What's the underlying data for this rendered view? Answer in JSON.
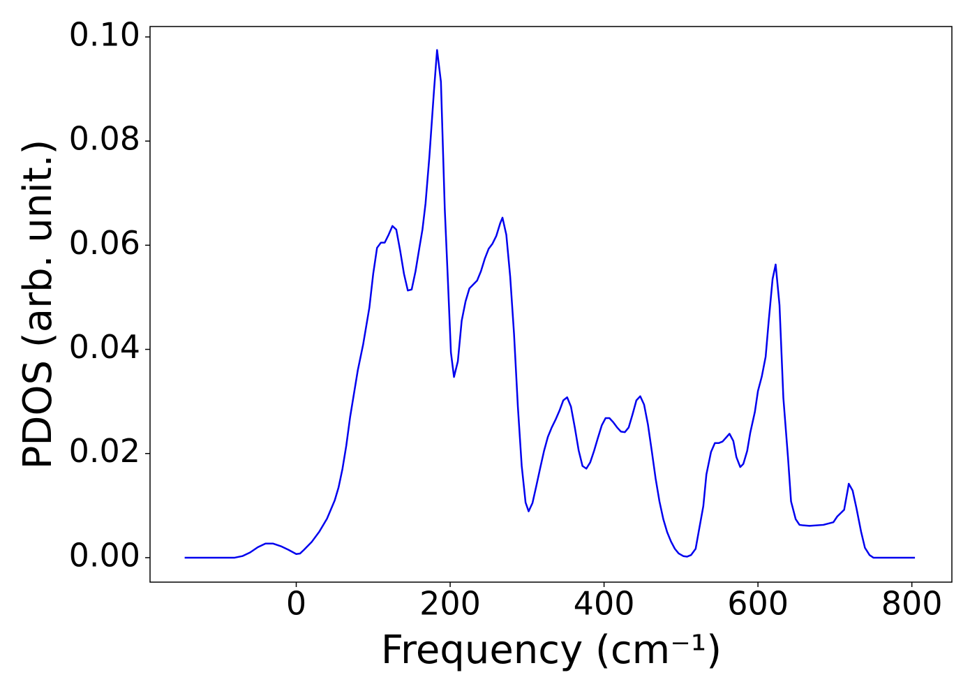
{
  "chart_data": {
    "type": "line",
    "xlabel": "Frequency (cm⁻¹)",
    "ylabel": "PDOS (arb. unit.)",
    "xlim": [
      -190,
      852
    ],
    "ylim": [
      -0.0047,
      0.102
    ],
    "xticks": [
      0,
      200,
      400,
      600,
      800
    ],
    "yticks": [
      {
        "value": 0,
        "label": "0.00"
      },
      {
        "value": 0.02,
        "label": "0.02"
      },
      {
        "value": 0.04,
        "label": "0.04"
      },
      {
        "value": 0.06,
        "label": "0.06"
      },
      {
        "value": 0.08,
        "label": "0.08"
      },
      {
        "value": 0.1,
        "label": "0.10"
      }
    ],
    "grid": false,
    "x": [
      -145,
      -80,
      -70,
      -60,
      -50,
      -40,
      -30,
      -20,
      -10,
      0,
      5,
      10,
      20,
      30,
      40,
      50,
      55,
      60,
      65,
      70,
      75,
      80,
      87,
      95,
      100,
      105,
      110,
      115,
      120,
      125,
      130,
      135,
      140,
      145,
      150,
      155,
      160,
      164,
      168,
      173,
      179,
      183,
      188,
      193,
      197,
      201,
      205,
      210,
      215,
      220,
      225,
      235,
      240,
      245,
      250,
      255,
      260,
      265,
      268,
      273,
      278,
      283,
      288,
      293,
      298,
      302,
      307,
      312,
      317,
      322,
      327,
      332,
      337,
      342,
      347,
      352,
      357,
      362,
      367,
      372,
      377,
      382,
      387,
      392,
      397,
      402,
      407,
      412,
      417,
      422,
      427,
      432,
      437,
      442,
      447,
      452,
      457,
      462,
      467,
      472,
      477,
      482,
      487,
      492,
      497,
      503,
      508,
      513,
      519,
      523,
      529,
      533,
      539,
      544,
      549,
      554,
      560,
      563,
      568,
      572,
      577,
      581,
      586,
      590,
      596,
      600,
      605,
      610,
      614,
      619,
      623,
      628,
      633,
      639,
      643,
      649,
      654,
      659,
      667,
      685,
      698,
      703,
      712,
      717,
      718,
      723,
      728,
      734,
      739,
      745,
      750,
      804
    ],
    "series": [
      {
        "color": "#0000ee",
        "values": [
          0,
          0,
          0.0003,
          0.001,
          0.002,
          0.0027,
          0.0027,
          0.0022,
          0.0015,
          0.0007,
          0.0008,
          0.0015,
          0.003,
          0.005,
          0.0075,
          0.011,
          0.0135,
          0.017,
          0.0215,
          0.027,
          0.0315,
          0.036,
          0.041,
          0.048,
          0.0545,
          0.0595,
          0.0605,
          0.0605,
          0.062,
          0.0637,
          0.063,
          0.059,
          0.0545,
          0.0513,
          0.0515,
          0.055,
          0.0595,
          0.063,
          0.068,
          0.077,
          0.0897,
          0.0975,
          0.0914,
          0.067,
          0.0535,
          0.0394,
          0.0347,
          0.0377,
          0.0455,
          0.0492,
          0.0517,
          0.0532,
          0.055,
          0.0574,
          0.0593,
          0.0603,
          0.0618,
          0.0642,
          0.0653,
          0.062,
          0.054,
          0.043,
          0.029,
          0.0176,
          0.0106,
          0.0089,
          0.0105,
          0.0138,
          0.0172,
          0.0205,
          0.0232,
          0.025,
          0.0265,
          0.0282,
          0.0302,
          0.0308,
          0.029,
          0.025,
          0.0206,
          0.0176,
          0.0171,
          0.0183,
          0.0205,
          0.023,
          0.0254,
          0.0268,
          0.0268,
          0.026,
          0.025,
          0.0242,
          0.0241,
          0.025,
          0.0275,
          0.0302,
          0.031,
          0.0294,
          0.0256,
          0.0205,
          0.0152,
          0.0108,
          0.0074,
          0.0049,
          0.0031,
          0.0017,
          0.0008,
          0.0003,
          0.0002,
          0.0005,
          0.0017,
          0.005,
          0.0099,
          0.016,
          0.0203,
          0.022,
          0.022,
          0.0223,
          0.0233,
          0.0238,
          0.0224,
          0.0193,
          0.0174,
          0.018,
          0.0205,
          0.024,
          0.028,
          0.032,
          0.0348,
          0.0386,
          0.0455,
          0.0535,
          0.0563,
          0.0485,
          0.0307,
          0.0193,
          0.0108,
          0.0074,
          0.0063,
          0.0062,
          0.0061,
          0.0063,
          0.0068,
          0.0079,
          0.0092,
          0.0133,
          0.0142,
          0.0129,
          0.0095,
          0.005,
          0.0019,
          0.0005,
          0,
          0
        ]
      }
    ]
  }
}
